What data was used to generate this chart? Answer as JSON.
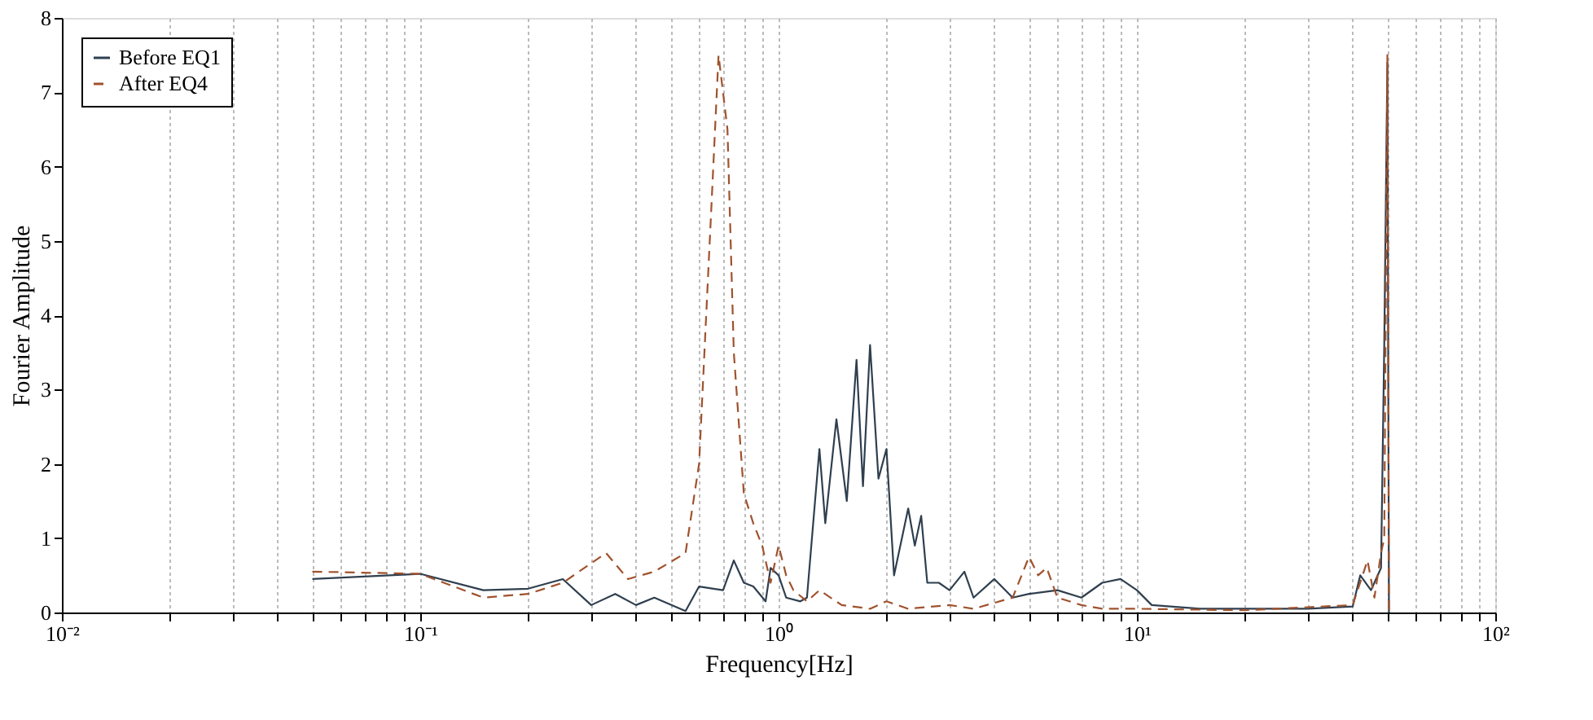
{
  "chart_data": {
    "type": "line",
    "xlabel": "Frequency[Hz]",
    "ylabel": "Fourier Amplitude",
    "log": "x",
    "xlim": [
      0.01,
      100
    ],
    "ylim": [
      0,
      8
    ],
    "xticks": [
      {
        "value": 0.01,
        "label": "10⁻²"
      },
      {
        "value": 0.02,
        "label": null
      },
      {
        "value": 0.03,
        "label": null
      },
      {
        "value": 0.04,
        "label": null
      },
      {
        "value": 0.05,
        "label": null
      },
      {
        "value": 0.06,
        "label": null
      },
      {
        "value": 0.07,
        "label": null
      },
      {
        "value": 0.08,
        "label": null
      },
      {
        "value": 0.09,
        "label": null
      },
      {
        "value": 0.1,
        "label": "10⁻¹"
      },
      {
        "value": 0.2,
        "label": null
      },
      {
        "value": 0.3,
        "label": null
      },
      {
        "value": 0.4,
        "label": null
      },
      {
        "value": 0.5,
        "label": null
      },
      {
        "value": 0.6,
        "label": null
      },
      {
        "value": 0.7,
        "label": null
      },
      {
        "value": 0.8,
        "label": null
      },
      {
        "value": 0.9,
        "label": null
      },
      {
        "value": 1,
        "label": "10⁰"
      },
      {
        "value": 2,
        "label": null
      },
      {
        "value": 3,
        "label": null
      },
      {
        "value": 4,
        "label": null
      },
      {
        "value": 5,
        "label": null
      },
      {
        "value": 6,
        "label": null
      },
      {
        "value": 7,
        "label": null
      },
      {
        "value": 8,
        "label": null
      },
      {
        "value": 9,
        "label": null
      },
      {
        "value": 10,
        "label": "10¹"
      },
      {
        "value": 20,
        "label": null
      },
      {
        "value": 30,
        "label": null
      },
      {
        "value": 40,
        "label": null
      },
      {
        "value": 50,
        "label": null
      },
      {
        "value": 60,
        "label": null
      },
      {
        "value": 70,
        "label": null
      },
      {
        "value": 80,
        "label": null
      },
      {
        "value": 90,
        "label": null
      },
      {
        "value": 100,
        "label": "10²"
      }
    ],
    "yticks": [
      0,
      1,
      2,
      3,
      4,
      5,
      6,
      7,
      8
    ],
    "grid": "x",
    "legend": "top left",
    "series": [
      {
        "name": "Before EQ1",
        "color": "#2f3f4f",
        "line_style": "solid",
        "x": [
          0.05,
          0.1,
          0.15,
          0.2,
          0.25,
          0.3,
          0.35,
          0.4,
          0.45,
          0.55,
          0.6,
          0.7,
          0.75,
          0.8,
          0.85,
          0.92,
          0.95,
          1.0,
          1.05,
          1.15,
          1.2,
          1.3,
          1.35,
          1.45,
          1.55,
          1.65,
          1.72,
          1.8,
          1.9,
          2.0,
          2.1,
          2.3,
          2.4,
          2.5,
          2.6,
          2.8,
          3.0,
          3.3,
          3.5,
          4,
          4.5,
          5,
          6,
          7,
          8,
          9,
          10,
          11,
          15,
          20,
          30,
          40,
          42,
          45,
          48,
          49,
          50,
          50.5
        ],
        "values": [
          0.45,
          0.52,
          0.3,
          0.32,
          0.45,
          0.1,
          0.25,
          0.1,
          0.2,
          0.02,
          0.35,
          0.3,
          0.7,
          0.4,
          0.35,
          0.15,
          0.6,
          0.5,
          0.2,
          0.15,
          0.2,
          2.2,
          1.2,
          2.6,
          1.5,
          3.4,
          1.7,
          3.6,
          1.8,
          2.2,
          0.5,
          1.4,
          0.9,
          1.3,
          0.4,
          0.4,
          0.3,
          0.55,
          0.2,
          0.45,
          0.2,
          0.25,
          0.3,
          0.2,
          0.4,
          0.45,
          0.3,
          0.1,
          0.05,
          0.05,
          0.05,
          0.08,
          0.5,
          0.3,
          0.6,
          3.6,
          7.4,
          0
        ]
      },
      {
        "name": "After EQ4",
        "color": "#a0522d",
        "line_style": "dashed",
        "x": [
          0.05,
          0.1,
          0.15,
          0.2,
          0.25,
          0.33,
          0.38,
          0.45,
          0.55,
          0.6,
          0.65,
          0.68,
          0.72,
          0.75,
          0.8,
          0.85,
          0.9,
          0.95,
          1.0,
          1.05,
          1.1,
          1.2,
          1.3,
          1.5,
          1.8,
          2,
          2.3,
          3,
          3.5,
          4.5,
          5,
          5.3,
          5.6,
          6,
          7,
          8,
          10,
          20,
          40,
          44,
          46,
          48,
          49,
          50,
          50.5
        ],
        "values": [
          0.55,
          0.52,
          0.2,
          0.25,
          0.4,
          0.8,
          0.45,
          0.55,
          0.8,
          2.0,
          5.5,
          7.5,
          6.5,
          3.5,
          1.6,
          1.2,
          0.9,
          0.4,
          0.9,
          0.5,
          0.3,
          0.15,
          0.3,
          0.1,
          0.05,
          0.15,
          0.05,
          0.1,
          0.05,
          0.2,
          0.75,
          0.5,
          0.6,
          0.2,
          0.1,
          0.05,
          0.05,
          0.03,
          0.1,
          0.7,
          0.2,
          0.8,
          1.0,
          7.5,
          0
        ]
      }
    ]
  }
}
